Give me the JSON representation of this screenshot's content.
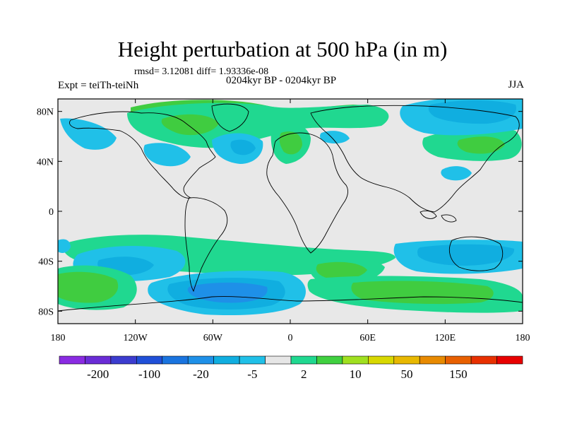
{
  "title": "Height perturbation at 500 hPa (in m)",
  "stats": "rmsd= 3.12081 diff= 1.93336e-08",
  "experiment": "Expt = teiTh-teiNh",
  "period": "0204kyr BP - 0204kyr BP",
  "season": "JJA",
  "map": {
    "lat_ticks": [
      "80N",
      "40N",
      "0",
      "40S",
      "80S"
    ],
    "lat_values": [
      80,
      40,
      0,
      -40,
      -80
    ],
    "lon_ticks": [
      "180",
      "120W",
      "60W",
      "0",
      "60E",
      "120E",
      "180"
    ],
    "lon_values": [
      -180,
      -120,
      -60,
      0,
      60,
      120,
      180
    ],
    "lat_range": [
      -90,
      90
    ],
    "lon_range": [
      -180,
      180
    ],
    "background_color": "#e8e8e8"
  },
  "colorbar": {
    "labels": [
      "-200",
      "-100",
      "-20",
      "-5",
      "2",
      "10",
      "50",
      "150"
    ],
    "colors": [
      "#8a2be2",
      "#6a2cd6",
      "#3c3ccf",
      "#2050d8",
      "#1a74df",
      "#1e90e8",
      "#10aee0",
      "#20c0e8",
      "#e6e6e6",
      "#20d890",
      "#40d040",
      "#a0e020",
      "#d8d800",
      "#e8b800",
      "#e88a00",
      "#e86000",
      "#e83000",
      "#e80000"
    ]
  }
}
